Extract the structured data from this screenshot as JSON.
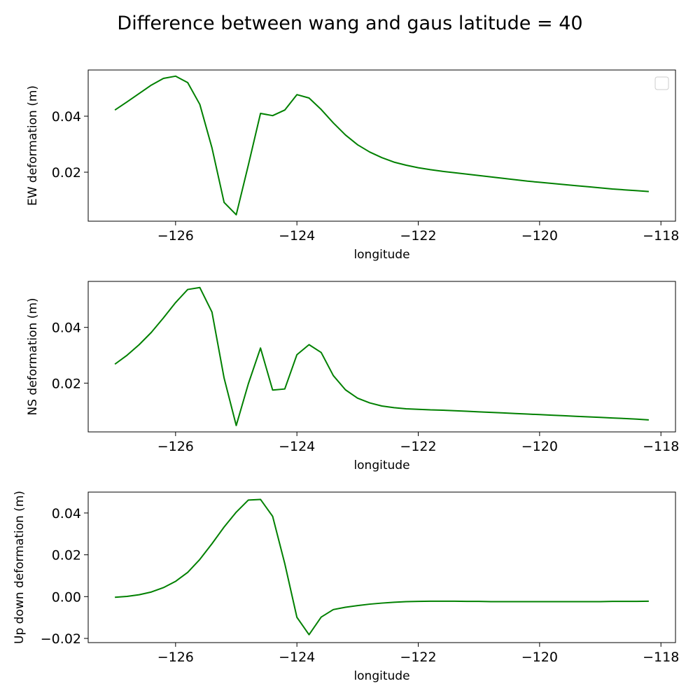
{
  "figure": {
    "title": "Difference between wang and gaus latitude = 40",
    "line_color": "#008000"
  },
  "chart_data": [
    {
      "type": "line",
      "xlabel": "longitude",
      "ylabel": "EW deformation (m)",
      "xlim": [
        -127.44,
        -117.76
      ],
      "ylim": [
        0.0025,
        0.0565
      ],
      "xticks": [
        -126,
        -124,
        -122,
        -120,
        -118
      ],
      "xtick_labels": [
        "−126",
        "−124",
        "−122",
        "−120",
        "−118"
      ],
      "yticks": [
        0.02,
        0.04
      ],
      "ytick_labels": [
        "0.02",
        "0.04"
      ],
      "legend": {
        "placement": "top-right",
        "entries": []
      },
      "grid": false,
      "series": [
        {
          "color": "#008000",
          "x": [
            -127.0,
            -126.8,
            -126.6,
            -126.4,
            -126.2,
            -126.0,
            -125.8,
            -125.6,
            -125.4,
            -125.2,
            -125.0,
            -124.8,
            -124.6,
            -124.4,
            -124.2,
            -124.0,
            -123.8,
            -123.6,
            -123.4,
            -123.2,
            -123.0,
            -122.8,
            -122.6,
            -122.4,
            -122.2,
            -122.0,
            -121.8,
            -121.6,
            -121.4,
            -121.2,
            -121.0,
            -120.8,
            -120.6,
            -120.4,
            -120.2,
            -120.0,
            -119.8,
            -119.6,
            -119.4,
            -119.2,
            -119.0,
            -118.8,
            -118.6,
            -118.4,
            -118.2
          ],
          "y": [
            0.0422,
            0.0451,
            0.0481,
            0.0511,
            0.0535,
            0.0543,
            0.052,
            0.0442,
            0.0287,
            0.0092,
            0.0048,
            0.0226,
            0.041,
            0.0402,
            0.0422,
            0.0477,
            0.0465,
            0.0424,
            0.0376,
            0.0333,
            0.0298,
            0.0272,
            0.0252,
            0.0236,
            0.0225,
            0.0216,
            0.0209,
            0.0203,
            0.0198,
            0.0193,
            0.0188,
            0.0183,
            0.0178,
            0.0173,
            0.0168,
            0.0164,
            0.016,
            0.0156,
            0.0152,
            0.0148,
            0.0144,
            0.014,
            0.0137,
            0.0134,
            0.0131
          ]
        }
      ]
    },
    {
      "type": "line",
      "xlabel": "longitude",
      "ylabel": "NS deformation (m)",
      "xlim": [
        -127.44,
        -117.76
      ],
      "ylim": [
        0.0025,
        0.0565
      ],
      "xticks": [
        -126,
        -124,
        -122,
        -120,
        -118
      ],
      "xtick_labels": [
        "−126",
        "−124",
        "−122",
        "−120",
        "−118"
      ],
      "yticks": [
        0.02,
        0.04
      ],
      "ytick_labels": [
        "0.02",
        "0.04"
      ],
      "grid": false,
      "series": [
        {
          "color": "#008000",
          "x": [
            -127.0,
            -126.8,
            -126.6,
            -126.4,
            -126.2,
            -126.0,
            -125.8,
            -125.6,
            -125.4,
            -125.2,
            -125.0,
            -124.8,
            -124.6,
            -124.4,
            -124.2,
            -124.0,
            -123.8,
            -123.6,
            -123.4,
            -123.2,
            -123.0,
            -122.8,
            -122.6,
            -122.4,
            -122.2,
            -122.0,
            -121.8,
            -121.6,
            -121.4,
            -121.2,
            -121.0,
            -120.8,
            -120.6,
            -120.4,
            -120.2,
            -120.0,
            -119.8,
            -119.6,
            -119.4,
            -119.2,
            -119.0,
            -118.8,
            -118.6,
            -118.4,
            -118.2
          ],
          "y": [
            0.0268,
            0.03,
            0.0338,
            0.0382,
            0.0434,
            0.0489,
            0.0536,
            0.0543,
            0.0455,
            0.0218,
            0.0048,
            0.0198,
            0.0326,
            0.0175,
            0.0179,
            0.0302,
            0.0338,
            0.031,
            0.0227,
            0.0176,
            0.0146,
            0.0129,
            0.0118,
            0.0112,
            0.0108,
            0.0106,
            0.0104,
            0.0103,
            0.0101,
            0.0099,
            0.0097,
            0.0095,
            0.0093,
            0.0091,
            0.0089,
            0.0087,
            0.0085,
            0.0083,
            0.0081,
            0.0079,
            0.0077,
            0.0075,
            0.0073,
            0.0071,
            0.0068
          ]
        }
      ]
    },
    {
      "type": "line",
      "xlabel": "longitude",
      "ylabel": "Up down deformation (m)",
      "xlim": [
        -127.44,
        -117.76
      ],
      "ylim": [
        -0.022,
        0.05
      ],
      "xticks": [
        -126,
        -124,
        -122,
        -120,
        -118
      ],
      "xtick_labels": [
        "−126",
        "−124",
        "−122",
        "−120",
        "−118"
      ],
      "yticks": [
        -0.02,
        0.0,
        0.02,
        0.04
      ],
      "ytick_labels": [
        "−0.02",
        "0.00",
        "0.02",
        "0.04"
      ],
      "grid": false,
      "series": [
        {
          "color": "#008000",
          "x": [
            -127.0,
            -126.8,
            -126.6,
            -126.4,
            -126.2,
            -126.0,
            -125.8,
            -125.6,
            -125.4,
            -125.2,
            -125.0,
            -124.8,
            -124.6,
            -124.4,
            -124.2,
            -124.0,
            -123.8,
            -123.6,
            -123.4,
            -123.2,
            -123.0,
            -122.8,
            -122.6,
            -122.4,
            -122.2,
            -122.0,
            -121.8,
            -121.6,
            -121.4,
            -121.2,
            -121.0,
            -120.8,
            -120.6,
            -120.4,
            -120.2,
            -120.0,
            -119.8,
            -119.6,
            -119.4,
            -119.2,
            -119.0,
            -118.8,
            -118.6,
            -118.4,
            -118.2
          ],
          "y": [
            -0.0003,
            0.0001,
            0.0009,
            0.0022,
            0.0043,
            0.0073,
            0.0116,
            0.0178,
            0.0253,
            0.0333,
            0.0404,
            0.0462,
            0.0465,
            0.0384,
            0.0158,
            -0.0099,
            -0.0182,
            -0.0098,
            -0.0062,
            -0.0051,
            -0.0043,
            -0.0036,
            -0.0031,
            -0.0027,
            -0.0024,
            -0.0023,
            -0.0022,
            -0.0022,
            -0.0022,
            -0.0023,
            -0.0023,
            -0.0024,
            -0.0024,
            -0.0024,
            -0.0024,
            -0.0024,
            -0.0024,
            -0.0024,
            -0.0024,
            -0.0024,
            -0.0024,
            -0.0023,
            -0.0023,
            -0.0023,
            -0.0022
          ]
        }
      ]
    }
  ]
}
